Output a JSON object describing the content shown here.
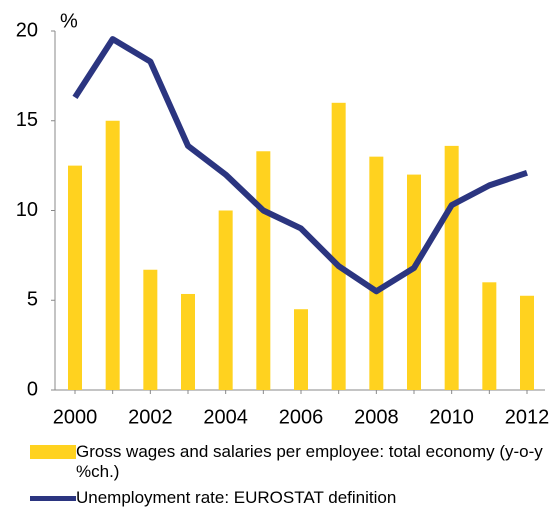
{
  "chart_data": {
    "type": "combo",
    "ylabel": "%",
    "categories": [
      "2000",
      null,
      "2002",
      null,
      "2004",
      null,
      "2006",
      null,
      "2008",
      null,
      "2010",
      null,
      "2012"
    ],
    "series": [
      {
        "name": "Gross wages and salaries per employee: total economy (y-o-y %ch.)",
        "type": "bar",
        "color": "#ffd21f",
        "values": [
          12.5,
          15.0,
          6.7,
          5.35,
          10.0,
          13.3,
          4.5,
          16.0,
          13.0,
          12.0,
          13.6,
          6.0,
          5.25
        ]
      },
      {
        "name": "Unemployment rate: EUROSTAT definition",
        "type": "line",
        "color": "#2b3580",
        "values": [
          16.3,
          19.55,
          18.3,
          13.6,
          12.0,
          10.0,
          9.0,
          6.9,
          5.5,
          6.8,
          10.3,
          11.4,
          12.1
        ]
      }
    ],
    "ylim": [
      0,
      20
    ],
    "yticks": [
      0,
      5,
      10,
      15,
      20
    ]
  }
}
